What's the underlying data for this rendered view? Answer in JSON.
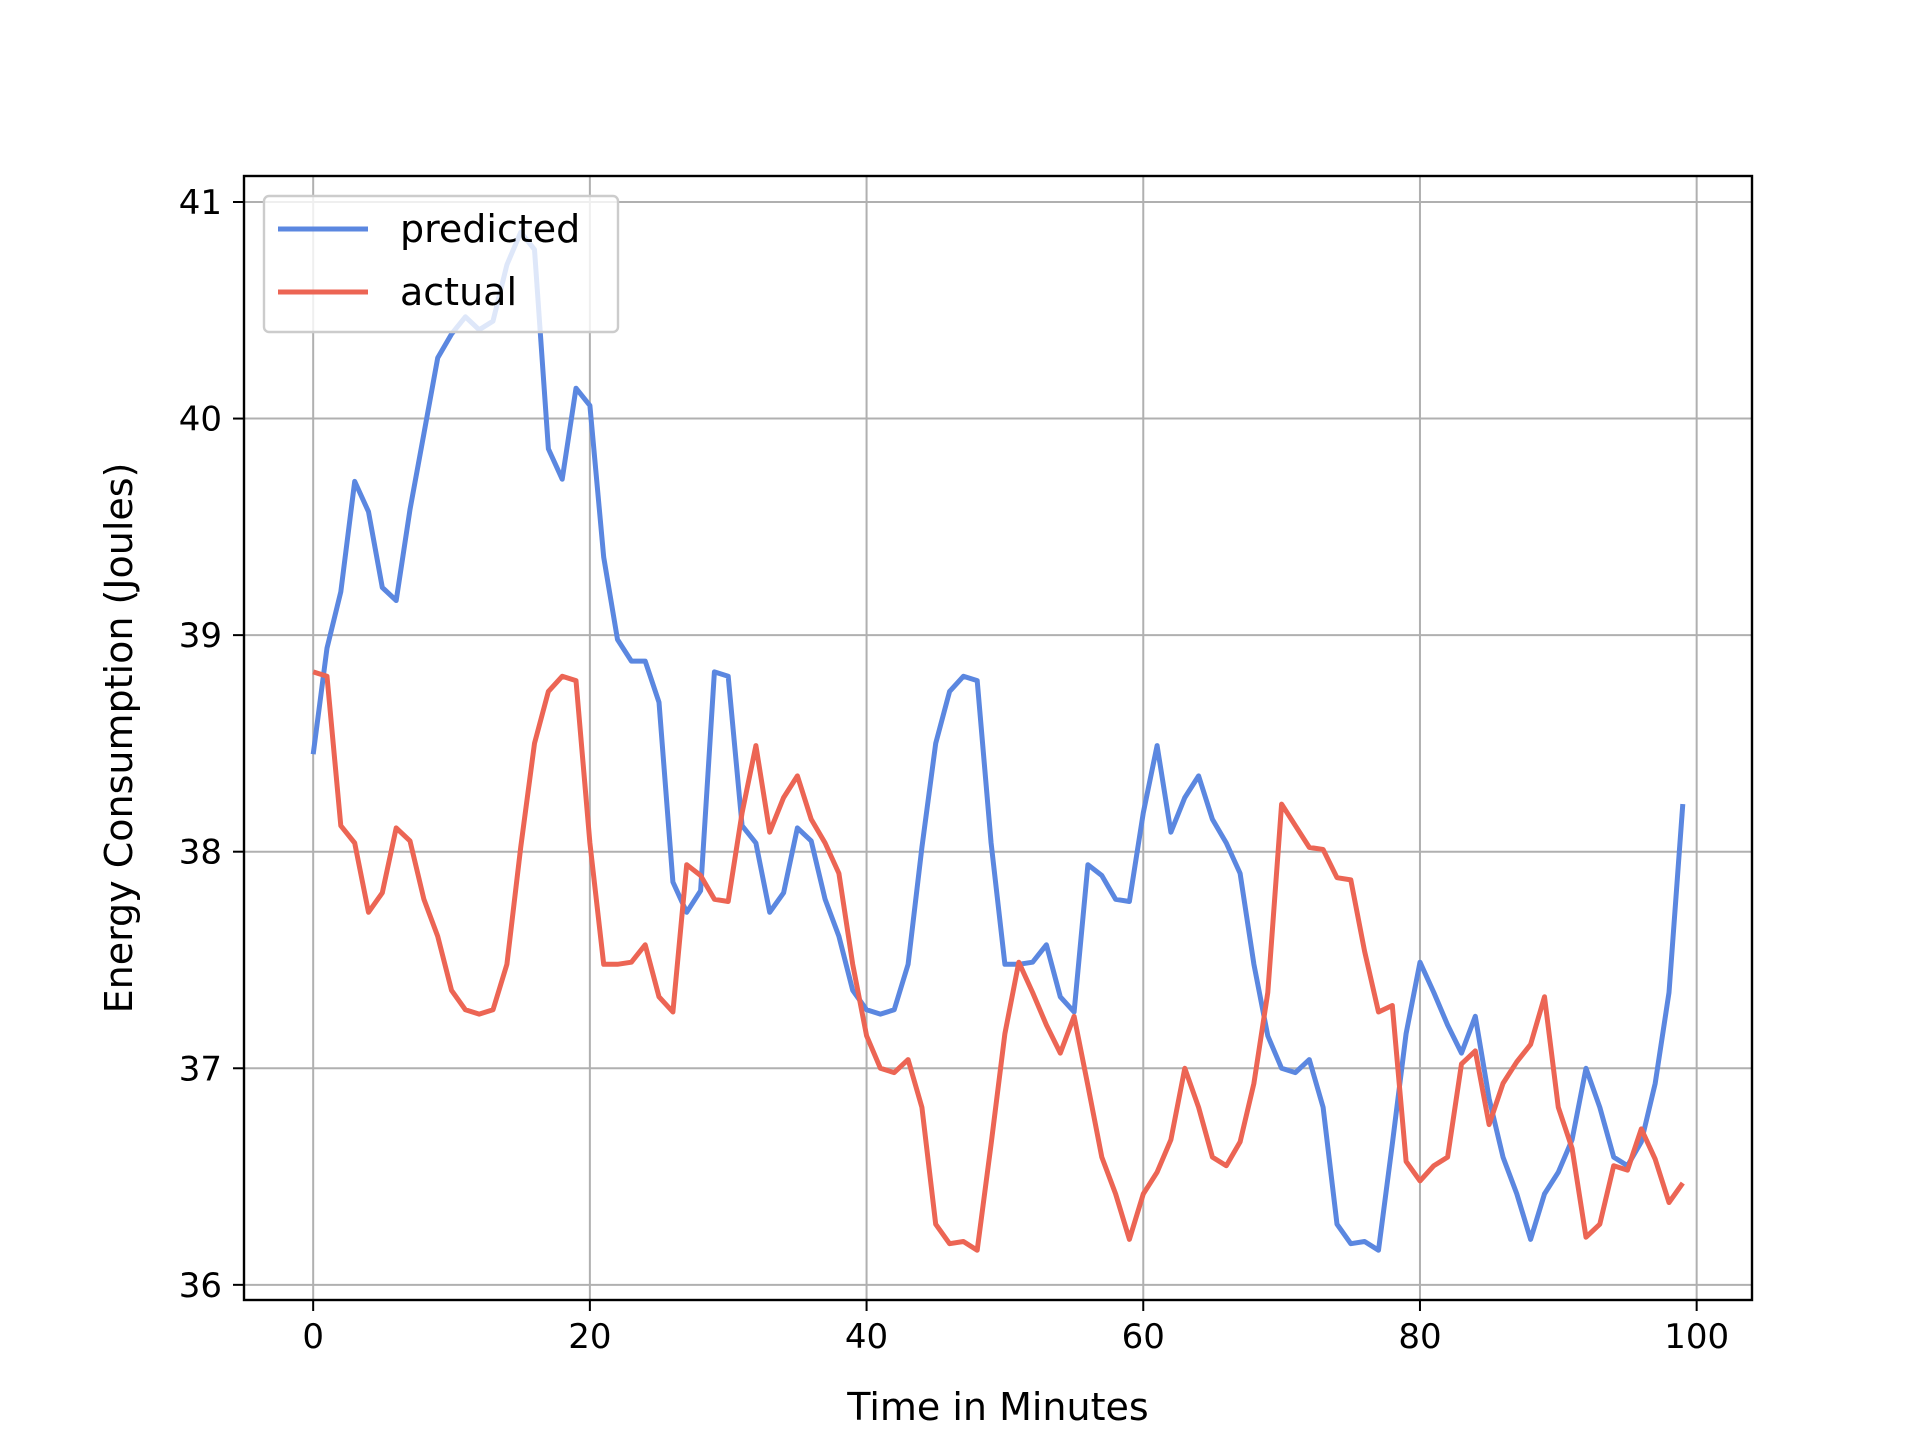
{
  "chart_data": {
    "type": "line",
    "title": "",
    "xlabel": "Time in Minutes",
    "ylabel": "Energy Consumption (Joules)",
    "xlim": [
      -5,
      104
    ],
    "ylim": [
      35.93,
      41.12
    ],
    "xticks": [
      0,
      20,
      40,
      60,
      80,
      100
    ],
    "yticks": [
      36,
      37,
      38,
      39,
      40,
      41
    ],
    "xtick_labels": [
      "0",
      "20",
      "40",
      "60",
      "80",
      "100"
    ],
    "ytick_labels": [
      "36",
      "37",
      "38",
      "39",
      "40",
      "41"
    ],
    "grid": true,
    "legend_position": "upper-left",
    "x": [
      0,
      1,
      2,
      3,
      4,
      5,
      6,
      7,
      8,
      9,
      10,
      11,
      12,
      13,
      14,
      15,
      16,
      17,
      18,
      19,
      20,
      21,
      22,
      23,
      24,
      25,
      26,
      27,
      28,
      29,
      30,
      31,
      32,
      33,
      34,
      35,
      36,
      37,
      38,
      39,
      40,
      41,
      42,
      43,
      44,
      45,
      46,
      47,
      48,
      49,
      50,
      51,
      52,
      53,
      54,
      55,
      56,
      57,
      58,
      59,
      60,
      61,
      62,
      63,
      64,
      65,
      66,
      67,
      68,
      69,
      70,
      71,
      72,
      73,
      74,
      75,
      76,
      77,
      78,
      79,
      80,
      81,
      82,
      83,
      84,
      85,
      86,
      87,
      88,
      89,
      90,
      91,
      92,
      93,
      94,
      95,
      96,
      97,
      98,
      99
    ],
    "series": [
      {
        "name": "predicted",
        "color": "#5b87e0",
        "values": [
          38.45,
          38.94,
          39.2,
          39.71,
          39.57,
          39.22,
          39.16,
          39.58,
          39.93,
          40.28,
          40.39,
          40.47,
          40.41,
          40.45,
          40.71,
          40.86,
          40.78,
          39.86,
          39.72,
          40.14,
          40.06,
          39.36,
          38.98,
          38.88,
          38.88,
          38.69,
          37.86,
          37.72,
          37.82,
          38.83,
          38.81,
          38.12,
          38.04,
          37.72,
          37.81,
          38.11,
          38.05,
          37.78,
          37.61,
          37.36,
          37.27,
          37.25,
          37.27,
          37.48,
          38.02,
          38.5,
          38.74,
          38.81,
          38.79,
          38.04,
          37.48,
          37.48,
          37.49,
          37.57,
          37.33,
          37.26,
          37.94,
          37.89,
          37.78,
          37.77,
          38.18,
          38.49,
          38.09,
          38.25,
          38.35,
          38.15,
          38.04,
          37.9,
          37.48,
          37.15,
          37.0,
          36.98,
          37.04,
          36.82,
          36.28,
          36.19,
          36.2,
          36.16,
          36.65,
          37.16,
          37.49,
          37.35,
          37.2,
          37.07,
          37.24,
          36.86,
          36.59,
          36.42,
          36.21,
          36.42,
          36.52,
          36.67,
          37.0,
          36.82,
          36.59,
          36.55,
          36.66,
          36.93,
          37.35,
          38.22
        ]
      },
      {
        "name": "actual",
        "color": "#ec6554",
        "values": [
          38.83,
          38.81,
          38.12,
          38.04,
          37.72,
          37.81,
          38.11,
          38.05,
          37.78,
          37.61,
          37.36,
          37.27,
          37.25,
          37.27,
          37.48,
          38.02,
          38.5,
          38.74,
          38.81,
          38.79,
          38.04,
          37.48,
          37.48,
          37.49,
          37.57,
          37.33,
          37.26,
          37.94,
          37.89,
          37.78,
          37.77,
          38.18,
          38.49,
          38.09,
          38.25,
          38.35,
          38.15,
          38.04,
          37.9,
          37.48,
          37.15,
          37.0,
          36.98,
          37.04,
          36.82,
          36.28,
          36.19,
          36.2,
          36.16,
          36.65,
          37.16,
          37.49,
          37.35,
          37.2,
          37.07,
          37.24,
          36.92,
          36.59,
          36.42,
          36.21,
          36.42,
          36.52,
          36.67,
          37.0,
          36.82,
          36.59,
          36.55,
          36.66,
          36.93,
          37.35,
          38.22,
          38.12,
          38.02,
          38.01,
          37.88,
          37.87,
          37.54,
          37.26,
          37.29,
          36.57,
          36.48,
          36.55,
          36.59,
          37.02,
          37.08,
          36.74,
          36.93,
          37.03,
          37.11,
          37.33,
          36.82,
          36.63,
          36.22,
          36.28,
          36.55,
          36.53,
          36.72,
          36.58,
          36.38,
          36.47
        ]
      }
    ]
  }
}
